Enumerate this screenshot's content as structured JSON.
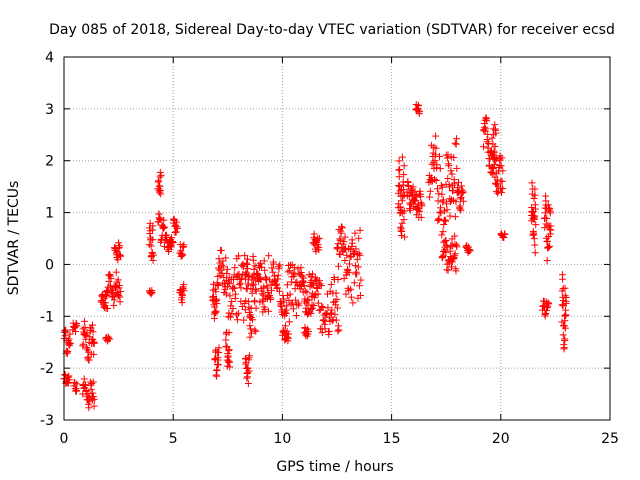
{
  "chart_data": {
    "type": "scatter",
    "title": "Day 085 of 2018, Sidereal Day-to-day VTEC variation (SDTVAR) for receiver ecsd",
    "xlabel": "GPS time / hours",
    "ylabel": "SDTVAR / TECUs",
    "xlim": [
      0,
      25
    ],
    "ylim": [
      -3,
      4
    ],
    "xticks": [
      "0",
      "5",
      "10",
      "15",
      "20",
      "25"
    ],
    "yticks": [
      "-3",
      "-2",
      "-1",
      "0",
      "1",
      "2",
      "3",
      "4"
    ],
    "grid": true,
    "marker": "+",
    "color": "#ff0000",
    "series": [
      {
        "name": "SDTVAR",
        "clusters": [
          {
            "x": [
              0.0,
              0.3
            ],
            "y": [
              -1.8,
              -1.2
            ]
          },
          {
            "x": [
              0.0,
              0.25
            ],
            "y": [
              -2.35,
              -2.1
            ]
          },
          {
            "x": [
              0.4,
              0.6
            ],
            "y": [
              -1.35,
              -1.1
            ]
          },
          {
            "x": [
              0.45,
              0.6
            ],
            "y": [
              -2.5,
              -2.2
            ]
          },
          {
            "x": [
              0.85,
              1.4
            ],
            "y": [
              -2.8,
              -2.2
            ]
          },
          {
            "x": [
              0.85,
              1.4
            ],
            "y": [
              -2.0,
              -1.0
            ]
          },
          {
            "x": [
              1.7,
              2.0
            ],
            "y": [
              -0.95,
              -0.4
            ]
          },
          {
            "x": [
              1.9,
              2.1
            ],
            "y": [
              -1.5,
              -1.4
            ]
          },
          {
            "x": [
              2.0,
              2.6
            ],
            "y": [
              -0.8,
              -0.1
            ]
          },
          {
            "x": [
              2.3,
              2.6
            ],
            "y": [
              0.0,
              0.45
            ]
          },
          {
            "x": [
              3.9,
              4.1
            ],
            "y": [
              0.0,
              0.8
            ]
          },
          {
            "x": [
              3.9,
              4.05
            ],
            "y": [
              -0.6,
              -0.5
            ]
          },
          {
            "x": [
              4.3,
              4.6
            ],
            "y": [
              0.4,
              1.0
            ]
          },
          {
            "x": [
              4.3,
              4.45
            ],
            "y": [
              1.3,
              1.8
            ]
          },
          {
            "x": [
              4.6,
              5.0
            ],
            "y": [
              0.2,
              0.65
            ]
          },
          {
            "x": [
              5.0,
              5.2
            ],
            "y": [
              0.6,
              0.9
            ]
          },
          {
            "x": [
              5.3,
              5.5
            ],
            "y": [
              -0.8,
              -0.3
            ]
          },
          {
            "x": [
              5.3,
              5.5
            ],
            "y": [
              0.1,
              0.4
            ]
          },
          {
            "x": [
              6.8,
              7.0
            ],
            "y": [
              -1.2,
              -0.3
            ]
          },
          {
            "x": [
              6.9,
              7.1
            ],
            "y": [
              -2.2,
              -1.6
            ]
          },
          {
            "x": [
              7.0,
              8.3
            ],
            "y": [
              -1.1,
              0.3
            ]
          },
          {
            "x": [
              7.4,
              7.6
            ],
            "y": [
              -2.0,
              -1.3
            ]
          },
          {
            "x": [
              8.3,
              8.8
            ],
            "y": [
              -1.6,
              0.3
            ]
          },
          {
            "x": [
              8.3,
              8.5
            ],
            "y": [
              -2.3,
              -1.7
            ]
          },
          {
            "x": [
              8.8,
              9.4
            ],
            "y": [
              -1.0,
              0.2
            ]
          },
          {
            "x": [
              9.4,
              10.8
            ],
            "y": [
              -1.2,
              0.1
            ]
          },
          {
            "x": [
              10.0,
              10.3
            ],
            "y": [
              -1.5,
              -1.2
            ]
          },
          {
            "x": [
              10.8,
              11.4
            ],
            "y": [
              -1.0,
              0.0
            ]
          },
          {
            "x": [
              11.0,
              11.2
            ],
            "y": [
              -1.4,
              -1.2
            ]
          },
          {
            "x": [
              11.4,
              11.7
            ],
            "y": [
              0.2,
              0.6
            ]
          },
          {
            "x": [
              11.3,
              12.6
            ],
            "y": [
              -1.4,
              -0.2
            ]
          },
          {
            "x": [
              12.5,
              13.6
            ],
            "y": [
              -0.8,
              0.8
            ]
          },
          {
            "x": [
              15.3,
              15.6
            ],
            "y": [
              0.3,
              2.1
            ]
          },
          {
            "x": [
              15.7,
              16.0
            ],
            "y": [
              1.0,
              1.6
            ]
          },
          {
            "x": [
              16.1,
              16.3
            ],
            "y": [
              2.9,
              3.1
            ]
          },
          {
            "x": [
              16.0,
              16.4
            ],
            "y": [
              0.8,
              1.5
            ]
          },
          {
            "x": [
              16.7,
              18.0
            ],
            "y": [
              0.5,
              2.5
            ]
          },
          {
            "x": [
              17.3,
              18.0
            ],
            "y": [
              -0.2,
              0.5
            ]
          },
          {
            "x": [
              18.0,
              18.3
            ],
            "y": [
              1.0,
              1.6
            ]
          },
          {
            "x": [
              18.4,
              18.6
            ],
            "y": [
              0.2,
              0.4
            ]
          },
          {
            "x": [
              19.2,
              19.8
            ],
            "y": [
              1.7,
              2.9
            ]
          },
          {
            "x": [
              19.6,
              20.1
            ],
            "y": [
              1.2,
              2.2
            ]
          },
          {
            "x": [
              20.0,
              20.2
            ],
            "y": [
              0.5,
              0.6
            ]
          },
          {
            "x": [
              21.4,
              21.6
            ],
            "y": [
              0.1,
              1.6
            ]
          },
          {
            "x": [
              22.0,
              22.3
            ],
            "y": [
              0.0,
              1.4
            ]
          },
          {
            "x": [
              21.9,
              22.2
            ],
            "y": [
              -1.0,
              -0.7
            ]
          },
          {
            "x": [
              22.8,
              23.0
            ],
            "y": [
              -1.7,
              -0.1
            ]
          }
        ]
      }
    ]
  }
}
